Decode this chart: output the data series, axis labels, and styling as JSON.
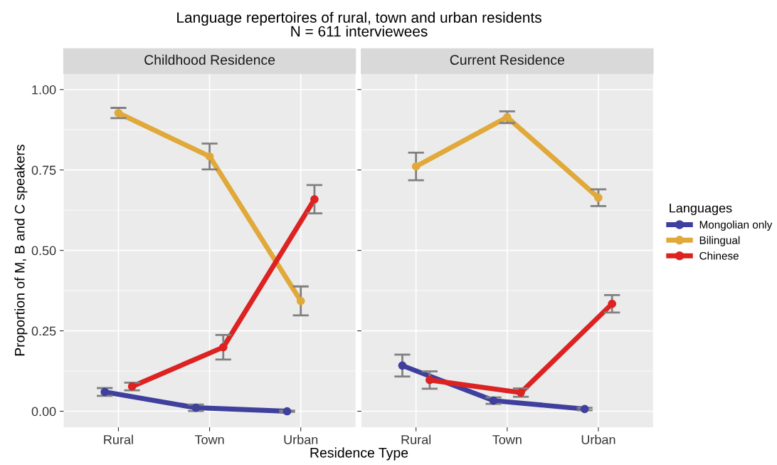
{
  "chart_data": [
    {
      "type": "line",
      "title": "Childhood Residence",
      "xlabel": "Residence Type",
      "ylabel": "Proportion of M, B and C speakers",
      "legend_title": "Languages",
      "legend": "right",
      "annotations": [
        "Language repertoires of rural, town and urban residents\nN = 611 interviewees"
      ],
      "categories": [
        "Rural",
        "Town",
        "Urban"
      ],
      "ylim": [
        -0.05,
        1.05
      ],
      "yticks": [
        {
          "value": 0,
          "label": "0.00"
        },
        {
          "value": 0.25,
          "label": "0.25"
        },
        {
          "value": 0.5,
          "label": "0.50"
        },
        {
          "value": 0.75,
          "label": "0.75"
        },
        {
          "value": 1,
          "label": "1.00"
        }
      ],
      "grid": true,
      "marker": "circle",
      "line_style": "solid",
      "series": [
        {
          "name": "Mongolian only",
          "color": "#3f3f9e",
          "values": [
            0.06,
            0.011,
            0.0
          ],
          "errors": [
            0.012,
            0.01,
            0.002
          ]
        },
        {
          "name": "Bilingual",
          "color": "#e0a93a",
          "values": [
            0.927,
            0.792,
            0.343
          ],
          "errors": [
            0.016,
            0.04,
            0.045
          ]
        },
        {
          "name": "Chinese",
          "color": "#dd2222",
          "values": [
            0.077,
            0.199,
            0.659
          ],
          "errors": [
            0.012,
            0.038,
            0.044
          ]
        }
      ]
    },
    {
      "type": "line",
      "title": "Current Residence",
      "categories": [
        "Rural",
        "Town",
        "Urban"
      ],
      "ylim": [
        -0.05,
        1.05
      ],
      "yticks": [
        {
          "value": 0,
          "label": null
        },
        {
          "value": 0.25,
          "label": null
        },
        {
          "value": 0.5,
          "label": null
        },
        {
          "value": 0.75,
          "label": null
        },
        {
          "value": 1,
          "label": null
        }
      ],
      "tick_labels": "x",
      "grid": true,
      "marker": "circle",
      "line_style": "solid",
      "series": [
        {
          "color": "#3f3f9e",
          "values": [
            0.142,
            0.033,
            0.007
          ],
          "errors": [
            0.034,
            0.01,
            0.004
          ]
        },
        {
          "color": "#e0a93a",
          "values": [
            0.761,
            0.914,
            0.664
          ],
          "errors": [
            0.043,
            0.018,
            0.026
          ]
        },
        {
          "color": "#dd2222",
          "values": [
            0.097,
            0.058,
            0.334
          ],
          "errors": [
            0.027,
            0.013,
            0.027
          ]
        }
      ]
    }
  ]
}
